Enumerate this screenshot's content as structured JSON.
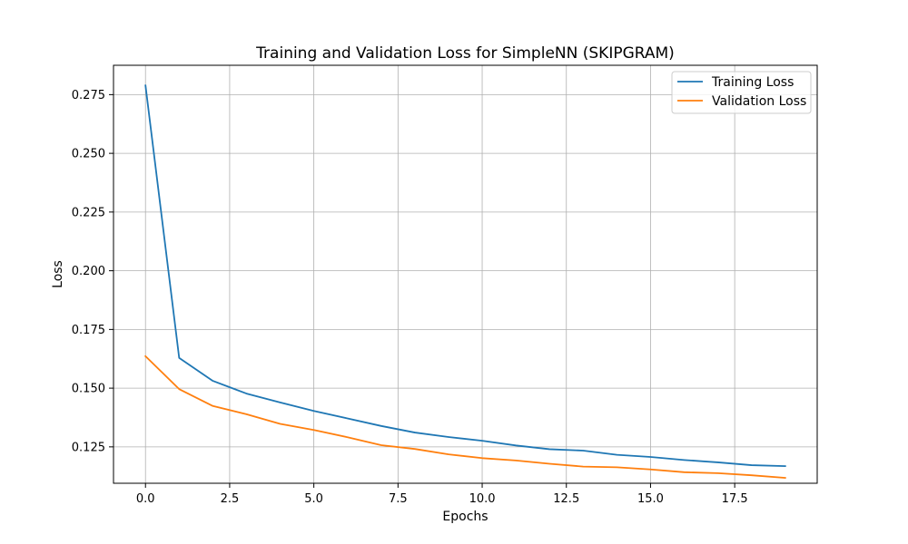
{
  "chart_data": {
    "type": "line",
    "title": "Training and Validation Loss for SimpleNN (SKIPGRAM)",
    "xlabel": "Epochs",
    "ylabel": "Loss",
    "xlim": [
      -0.95,
      19.95
    ],
    "ylim": [
      0.1095,
      0.2875
    ],
    "xticks": [
      0.0,
      2.5,
      5.0,
      7.5,
      10.0,
      12.5,
      15.0,
      17.5
    ],
    "xtick_labels": [
      "0.0",
      "2.5",
      "5.0",
      "7.5",
      "10.0",
      "12.5",
      "15.0",
      "17.5"
    ],
    "yticks": [
      0.125,
      0.15,
      0.175,
      0.2,
      0.225,
      0.25,
      0.275
    ],
    "ytick_labels": [
      "0.125",
      "0.150",
      "0.175",
      "0.200",
      "0.225",
      "0.250",
      "0.275"
    ],
    "grid": true,
    "legend_position": "top-right",
    "x": [
      0,
      1,
      2,
      3,
      4,
      5,
      6,
      7,
      8,
      9,
      10,
      11,
      12,
      13,
      14,
      15,
      16,
      17,
      18,
      19
    ],
    "series": [
      {
        "name": "Training Loss",
        "color": "#1f77b4",
        "values": [
          0.2789,
          0.1629,
          0.1531,
          0.1477,
          0.1439,
          0.1403,
          0.1371,
          0.1339,
          0.1311,
          0.1292,
          0.1276,
          0.1256,
          0.124,
          0.1234,
          0.1216,
          0.1207,
          0.1194,
          0.1184,
          0.1172,
          0.1168
        ]
      },
      {
        "name": "Validation Loss",
        "color": "#ff7f0e",
        "values": [
          0.1636,
          0.1496,
          0.1424,
          0.1389,
          0.1348,
          0.1322,
          0.1291,
          0.1257,
          0.1241,
          0.1218,
          0.1202,
          0.1192,
          0.1178,
          0.1166,
          0.1163,
          0.1154,
          0.1142,
          0.1138,
          0.1129,
          0.1118
        ]
      }
    ]
  }
}
